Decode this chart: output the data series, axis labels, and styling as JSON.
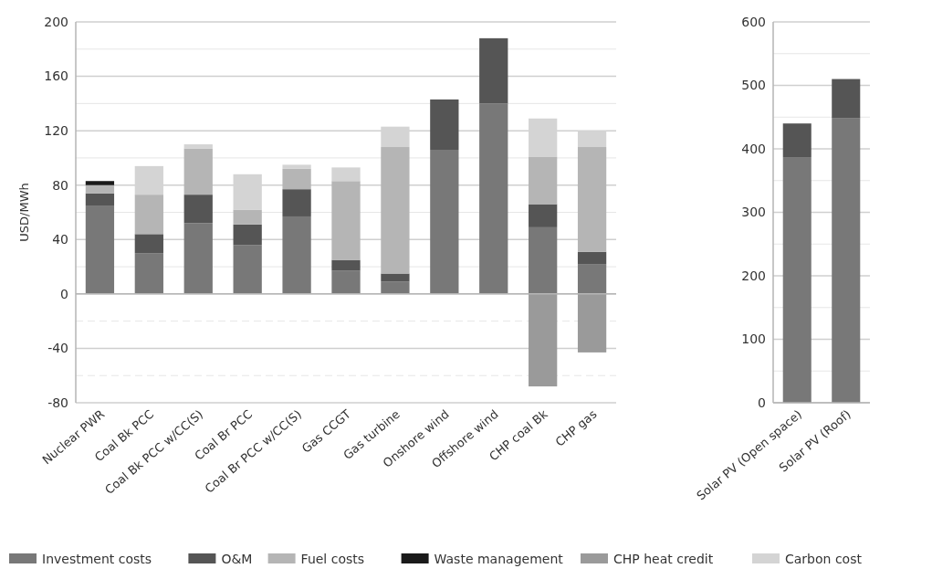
{
  "chart_data": [
    {
      "type": "bar",
      "stacked": true,
      "ylabel": "USD/MWh",
      "categories": [
        "Nuclear PWR",
        "Coal Bk PCC",
        "Coal Bk PCC w/CC(S)",
        "Coal Br PCC",
        "Coal Br PCC w/CC(S)",
        "Gas CCGT",
        "Gas turbine",
        "Onshore wind",
        "Offshore wind",
        "CHP coal Bk",
        "CHP gas"
      ],
      "series": [
        {
          "name": "Investment costs",
          "color": "#787878",
          "values": [
            65,
            30,
            52,
            36,
            57,
            17,
            9,
            106,
            140,
            49,
            22
          ]
        },
        {
          "name": "O&M",
          "color": "#555555",
          "values": [
            9,
            14,
            21,
            15,
            20,
            8,
            6,
            37,
            48,
            17,
            9
          ]
        },
        {
          "name": "Fuel costs",
          "color": "#b5b5b5",
          "values": [
            6,
            29,
            34,
            11,
            15,
            58,
            93,
            null,
            null,
            35,
            77
          ]
        },
        {
          "name": "Waste management",
          "color": "#1a1a1a",
          "values": [
            3,
            null,
            null,
            null,
            null,
            null,
            null,
            null,
            null,
            null,
            null
          ]
        },
        {
          "name": "CHP heat credit",
          "color": "#9a9a9a",
          "values": [
            null,
            null,
            null,
            null,
            null,
            null,
            null,
            null,
            null,
            -68,
            -43
          ]
        },
        {
          "name": "Carbon cost",
          "color": "#d4d4d4",
          "values": [
            null,
            21,
            3,
            26,
            3,
            10,
            15,
            null,
            null,
            28,
            12
          ]
        }
      ],
      "ylim": [
        -80,
        200
      ],
      "yticks": [
        -80,
        {
          "value": -60,
          "label": null
        },
        -40,
        {
          "value": -20,
          "label": null
        },
        0,
        {
          "value": 20,
          "label": null
        },
        40,
        {
          "value": 60,
          "label": null
        },
        80,
        {
          "value": 100,
          "label": null
        },
        120,
        {
          "value": 140,
          "label": null
        },
        160,
        {
          "value": 180,
          "label": null
        },
        200
      ],
      "grid": true,
      "legend": "bottom"
    },
    {
      "type": "bar",
      "stacked": true,
      "categories": [
        "Solar PV (Open space)",
        "Solar PV (Roof)"
      ],
      "series": [
        {
          "color": "#787878",
          "values": [
            387,
            448
          ]
        },
        {
          "color": "#555555",
          "values": [
            53,
            62
          ]
        }
      ],
      "ylim": [
        0,
        600
      ],
      "yticks": [
        0,
        {
          "value": 50,
          "label": null
        },
        100,
        {
          "value": 150,
          "label": null
        },
        200,
        {
          "value": 250,
          "label": null
        },
        300,
        {
          "value": 350,
          "label": null
        },
        400,
        {
          "value": 450,
          "label": null
        },
        500,
        {
          "value": 550,
          "label": null
        },
        600
      ],
      "grid": true
    }
  ]
}
